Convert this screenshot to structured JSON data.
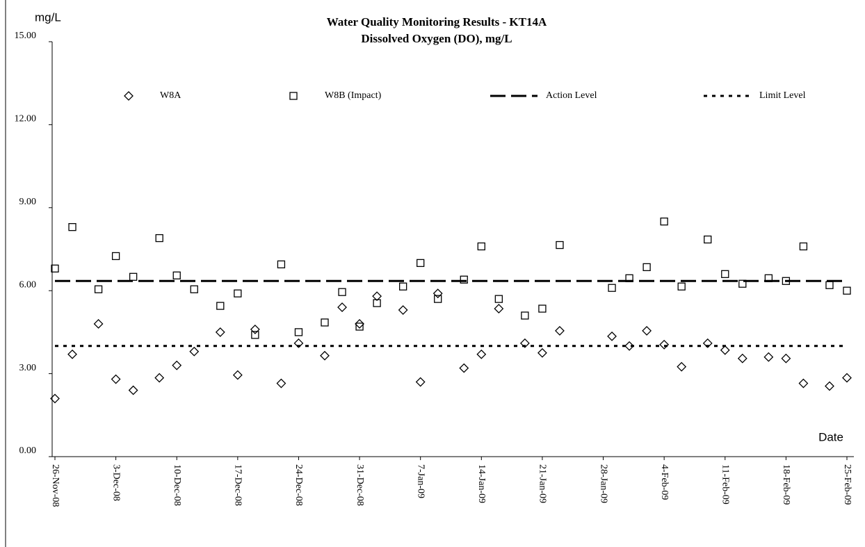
{
  "chart_data": {
    "type": "scatter",
    "title": "Water Quality Monitoring Results - KT14A",
    "subtitle": "Dissolved Oxygen (DO), mg/L",
    "y_label": "mg/L",
    "x_label": "Date",
    "x": [
      "2008-11-26",
      "2008-11-28",
      "2008-12-01",
      "2008-12-03",
      "2008-12-05",
      "2008-12-08",
      "2008-12-10",
      "2008-12-12",
      "2008-12-15",
      "2008-12-17",
      "2008-12-19",
      "2008-12-22",
      "2008-12-24",
      "2008-12-27",
      "2008-12-29",
      "2008-12-31",
      "2009-01-02",
      "2009-01-05",
      "2009-01-07",
      "2009-01-09",
      "2009-01-12",
      "2009-01-14",
      "2009-01-16",
      "2009-01-19",
      "2009-01-21",
      "2009-01-23",
      "2009-01-29",
      "2009-01-31",
      "2009-02-02",
      "2009-02-04",
      "2009-02-06",
      "2009-02-09",
      "2009-02-11",
      "2009-02-13",
      "2009-02-16",
      "2009-02-18",
      "2009-02-20",
      "2009-02-23",
      "2009-02-25"
    ],
    "series": [
      {
        "name": "W8A",
        "color": "#000000",
        "marker": "diamond",
        "values": [
          2.1,
          3.7,
          4.8,
          2.8,
          2.4,
          2.85,
          3.3,
          3.8,
          4.5,
          2.95,
          4.6,
          2.65,
          4.1,
          3.65,
          5.4,
          4.8,
          5.8,
          5.3,
          2.7,
          5.9,
          3.2,
          3.7,
          5.35,
          4.1,
          3.75,
          4.55,
          4.35,
          4.0,
          4.55,
          4.05,
          3.25,
          4.1,
          3.85,
          3.55,
          3.6,
          3.55,
          2.65,
          2.55,
          2.85
        ]
      },
      {
        "name": "W8B (Impact)",
        "color": "#000000",
        "marker": "square",
        "values": [
          6.8,
          8.3,
          6.05,
          7.25,
          6.5,
          7.9,
          6.55,
          6.05,
          5.45,
          5.9,
          4.4,
          6.95,
          4.5,
          4.85,
          5.95,
          4.7,
          5.55,
          6.15,
          7.0,
          5.7,
          6.4,
          7.6,
          5.7,
          5.1,
          5.35,
          7.65,
          6.1,
          6.45,
          6.85,
          8.5,
          6.15,
          7.85,
          6.6,
          6.25,
          6.45,
          6.35,
          7.6,
          6.2,
          6.0
        ]
      },
      {
        "name": "Action Level",
        "color": "#000000",
        "linestyle": "dashed",
        "x": [
          "2008-11-26",
          "2009-02-25"
        ],
        "values": [
          6.35,
          6.35
        ]
      },
      {
        "name": "Limit Level",
        "color": "#000000",
        "linestyle": "dotted",
        "x": [
          "2008-11-26",
          "2009-02-25"
        ],
        "values": [
          4.0,
          4.0
        ]
      }
    ],
    "xlim": [
      "2008-11-26",
      "2009-02-25"
    ],
    "xticks": [
      {
        "value": "2008-11-26",
        "label": "26-Nov-08"
      },
      {
        "value": "2008-12-03",
        "label": "3-Dec-08"
      },
      {
        "value": "2008-12-10",
        "label": "10-Dec-08"
      },
      {
        "value": "2008-12-17",
        "label": "17-Dec-08"
      },
      {
        "value": "2008-12-24",
        "label": "24-Dec-08"
      },
      {
        "value": "2008-12-31",
        "label": "31-Dec-08"
      },
      {
        "value": "2009-01-07",
        "label": "7-Jan-09"
      },
      {
        "value": "2009-01-14",
        "label": "14-Jan-09"
      },
      {
        "value": "2009-01-21",
        "label": "21-Jan-09"
      },
      {
        "value": "2009-01-28",
        "label": "28-Jan-09"
      },
      {
        "value": "2009-02-04",
        "label": "4-Feb-09"
      },
      {
        "value": "2009-02-11",
        "label": "11-Feb-09"
      },
      {
        "value": "2009-02-18",
        "label": "18-Feb-09"
      },
      {
        "value": "2009-02-25",
        "label": "25-Feb-09"
      }
    ],
    "ylim": [
      0,
      15
    ],
    "yticks": [
      {
        "value": 0,
        "label": "0.00"
      },
      {
        "value": 3,
        "label": "3.00"
      },
      {
        "value": 6,
        "label": "6.00"
      },
      {
        "value": 9,
        "label": "9.00"
      },
      {
        "value": 12,
        "label": "12.00"
      },
      {
        "value": 15,
        "label": "15.00"
      }
    ],
    "legend": "top"
  }
}
